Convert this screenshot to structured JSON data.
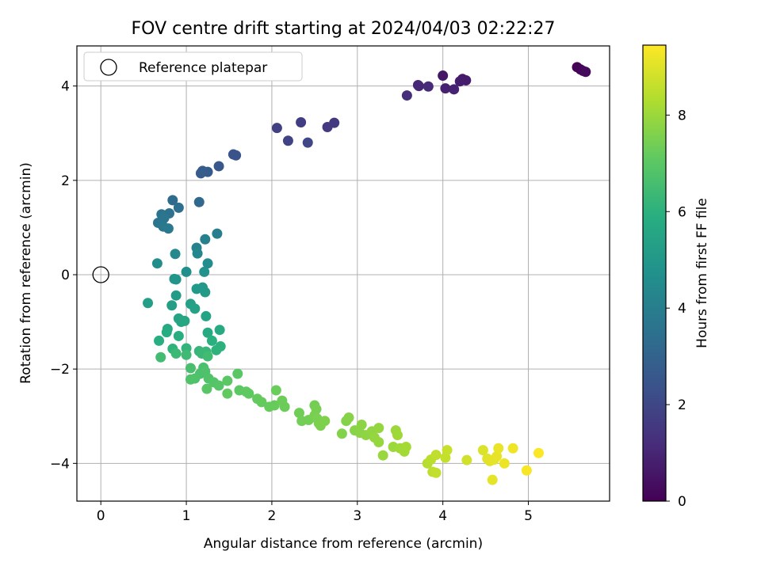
{
  "chart_data": {
    "type": "scatter",
    "title": "FOV centre drift starting at 2024/04/03 02:22:27",
    "xlabel": "Angular distance from reference (arcmin)",
    "ylabel": "Rotation from reference (arcmin)",
    "xlim": [
      -0.28,
      5.95
    ],
    "ylim": [
      -4.8,
      4.85
    ],
    "xticks": [
      0,
      1,
      2,
      3,
      4,
      5
    ],
    "yticks": [
      -4,
      -2,
      0,
      2,
      4
    ],
    "grid": true,
    "legend": {
      "placement": "top-left",
      "entries": [
        "Reference platepar"
      ]
    },
    "reference_point": {
      "name": "Reference platepar",
      "x": 0,
      "y": 0
    },
    "colorbar": {
      "label": "Hours from first FF file",
      "colormap": "viridis",
      "min": 0,
      "max": 9.45,
      "ticks": [
        0,
        2,
        4,
        6,
        8
      ]
    },
    "points": [
      {
        "x": 5.57,
        "y": 4.4,
        "t": 0.05
      },
      {
        "x": 5.61,
        "y": 4.35,
        "t": 0.12
      },
      {
        "x": 5.64,
        "y": 4.32,
        "t": 0.18
      },
      {
        "x": 5.67,
        "y": 4.3,
        "t": 0.25
      },
      {
        "x": 4.0,
        "y": 4.22,
        "t": 0.55
      },
      {
        "x": 4.23,
        "y": 4.15,
        "t": 0.65
      },
      {
        "x": 4.27,
        "y": 4.12,
        "t": 0.7
      },
      {
        "x": 4.2,
        "y": 4.1,
        "t": 0.75
      },
      {
        "x": 4.03,
        "y": 3.95,
        "t": 0.85
      },
      {
        "x": 4.13,
        "y": 3.93,
        "t": 0.9
      },
      {
        "x": 3.72,
        "y": 4.0,
        "t": 1.0
      },
      {
        "x": 3.71,
        "y": 4.02,
        "t": 1.05
      },
      {
        "x": 3.83,
        "y": 3.99,
        "t": 1.1
      },
      {
        "x": 3.58,
        "y": 3.8,
        "t": 1.2
      },
      {
        "x": 2.73,
        "y": 3.22,
        "t": 1.55
      },
      {
        "x": 2.65,
        "y": 3.13,
        "t": 1.6
      },
      {
        "x": 2.34,
        "y": 3.23,
        "t": 1.7
      },
      {
        "x": 2.06,
        "y": 3.11,
        "t": 1.8
      },
      {
        "x": 2.19,
        "y": 2.84,
        "t": 1.9
      },
      {
        "x": 2.42,
        "y": 2.8,
        "t": 2.0
      },
      {
        "x": 1.55,
        "y": 2.55,
        "t": 2.4
      },
      {
        "x": 1.58,
        "y": 2.53,
        "t": 2.45
      },
      {
        "x": 1.38,
        "y": 2.3,
        "t": 2.55
      },
      {
        "x": 1.25,
        "y": 2.18,
        "t": 2.65
      },
      {
        "x": 1.17,
        "y": 2.15,
        "t": 2.7
      },
      {
        "x": 1.19,
        "y": 2.2,
        "t": 2.75
      },
      {
        "x": 1.15,
        "y": 1.54,
        "t": 3.2
      },
      {
        "x": 0.84,
        "y": 1.58,
        "t": 3.3
      },
      {
        "x": 0.91,
        "y": 1.42,
        "t": 3.4
      },
      {
        "x": 0.8,
        "y": 1.3,
        "t": 3.5
      },
      {
        "x": 0.71,
        "y": 1.28,
        "t": 3.6
      },
      {
        "x": 0.74,
        "y": 1.2,
        "t": 3.65
      },
      {
        "x": 0.67,
        "y": 1.1,
        "t": 3.7
      },
      {
        "x": 0.73,
        "y": 1.02,
        "t": 3.75
      },
      {
        "x": 0.79,
        "y": 0.98,
        "t": 3.8
      },
      {
        "x": 1.36,
        "y": 0.87,
        "t": 4.0
      },
      {
        "x": 1.22,
        "y": 0.75,
        "t": 4.1
      },
      {
        "x": 1.12,
        "y": 0.57,
        "t": 4.2
      },
      {
        "x": 0.87,
        "y": 0.44,
        "t": 4.4
      },
      {
        "x": 1.13,
        "y": 0.45,
        "t": 4.35
      },
      {
        "x": 0.66,
        "y": 0.24,
        "t": 4.6
      },
      {
        "x": 1.25,
        "y": 0.24,
        "t": 4.55
      },
      {
        "x": 1.0,
        "y": 0.06,
        "t": 4.7
      },
      {
        "x": 1.21,
        "y": 0.06,
        "t": 4.75
      },
      {
        "x": 0.86,
        "y": -0.09,
        "t": 4.85
      },
      {
        "x": 0.88,
        "y": -0.1,
        "t": 4.9
      },
      {
        "x": 1.19,
        "y": -0.27,
        "t": 5.0
      },
      {
        "x": 1.12,
        "y": -0.3,
        "t": 5.05
      },
      {
        "x": 1.22,
        "y": -0.37,
        "t": 5.1
      },
      {
        "x": 0.88,
        "y": -0.44,
        "t": 5.15
      },
      {
        "x": 0.55,
        "y": -0.6,
        "t": 5.25
      },
      {
        "x": 0.83,
        "y": -0.65,
        "t": 5.3
      },
      {
        "x": 1.05,
        "y": -0.62,
        "t": 5.35
      },
      {
        "x": 1.1,
        "y": -0.72,
        "t": 5.4
      },
      {
        "x": 1.23,
        "y": -0.88,
        "t": 5.45
      },
      {
        "x": 0.91,
        "y": -0.93,
        "t": 5.5
      },
      {
        "x": 0.94,
        "y": -1.0,
        "t": 5.55
      },
      {
        "x": 0.98,
        "y": -0.98,
        "t": 5.6
      },
      {
        "x": 0.78,
        "y": -1.15,
        "t": 5.65
      },
      {
        "x": 1.39,
        "y": -1.17,
        "t": 5.7
      },
      {
        "x": 1.25,
        "y": -1.23,
        "t": 5.75
      },
      {
        "x": 0.77,
        "y": -1.22,
        "t": 5.8
      },
      {
        "x": 0.91,
        "y": -1.3,
        "t": 5.85
      },
      {
        "x": 0.68,
        "y": -1.4,
        "t": 5.9
      },
      {
        "x": 1.3,
        "y": -1.4,
        "t": 5.95
      },
      {
        "x": 1.4,
        "y": -1.52,
        "t": 6.0
      },
      {
        "x": 1.35,
        "y": -1.6,
        "t": 6.05
      },
      {
        "x": 0.84,
        "y": -1.57,
        "t": 6.1
      },
      {
        "x": 1.0,
        "y": -1.56,
        "t": 6.15
      },
      {
        "x": 1.15,
        "y": -1.62,
        "t": 6.2
      },
      {
        "x": 1.23,
        "y": -1.63,
        "t": 6.25
      },
      {
        "x": 1.18,
        "y": -1.67,
        "t": 6.3
      },
      {
        "x": 0.88,
        "y": -1.67,
        "t": 6.35
      },
      {
        "x": 1.0,
        "y": -1.7,
        "t": 6.4
      },
      {
        "x": 1.25,
        "y": -1.73,
        "t": 6.45
      },
      {
        "x": 0.7,
        "y": -1.75,
        "t": 6.5
      },
      {
        "x": 1.05,
        "y": -1.98,
        "t": 6.6
      },
      {
        "x": 1.2,
        "y": -1.97,
        "t": 6.65
      },
      {
        "x": 1.16,
        "y": -2.1,
        "t": 6.7
      },
      {
        "x": 1.22,
        "y": -2.05,
        "t": 6.72
      },
      {
        "x": 1.1,
        "y": -2.2,
        "t": 6.75
      },
      {
        "x": 1.05,
        "y": -2.22,
        "t": 6.78
      },
      {
        "x": 1.26,
        "y": -2.2,
        "t": 6.8
      },
      {
        "x": 1.32,
        "y": -2.28,
        "t": 6.85
      },
      {
        "x": 1.38,
        "y": -2.35,
        "t": 6.9
      },
      {
        "x": 1.24,
        "y": -2.42,
        "t": 6.95
      },
      {
        "x": 1.48,
        "y": -2.25,
        "t": 7.0
      },
      {
        "x": 1.6,
        "y": -2.1,
        "t": 7.02
      },
      {
        "x": 1.62,
        "y": -2.45,
        "t": 7.05
      },
      {
        "x": 1.7,
        "y": -2.48,
        "t": 7.08
      },
      {
        "x": 1.73,
        "y": -2.52,
        "t": 7.1
      },
      {
        "x": 1.48,
        "y": -2.52,
        "t": 7.12
      },
      {
        "x": 1.83,
        "y": -2.63,
        "t": 7.15
      },
      {
        "x": 1.88,
        "y": -2.7,
        "t": 7.18
      },
      {
        "x": 1.97,
        "y": -2.8,
        "t": 7.2
      },
      {
        "x": 2.03,
        "y": -2.77,
        "t": 7.22
      },
      {
        "x": 2.05,
        "y": -2.45,
        "t": 7.25
      },
      {
        "x": 2.12,
        "y": -2.67,
        "t": 7.28
      },
      {
        "x": 2.15,
        "y": -2.8,
        "t": 7.3
      },
      {
        "x": 2.32,
        "y": -2.93,
        "t": 7.35
      },
      {
        "x": 2.35,
        "y": -3.1,
        "t": 7.38
      },
      {
        "x": 2.43,
        "y": -3.08,
        "t": 7.4
      },
      {
        "x": 2.5,
        "y": -2.77,
        "t": 7.42
      },
      {
        "x": 2.52,
        "y": -2.85,
        "t": 7.45
      },
      {
        "x": 2.5,
        "y": -2.98,
        "t": 7.48
      },
      {
        "x": 2.53,
        "y": -3.05,
        "t": 7.5
      },
      {
        "x": 2.55,
        "y": -3.15,
        "t": 7.52
      },
      {
        "x": 2.57,
        "y": -3.2,
        "t": 7.55
      },
      {
        "x": 2.62,
        "y": -3.1,
        "t": 7.58
      },
      {
        "x": 2.82,
        "y": -3.37,
        "t": 7.62
      },
      {
        "x": 2.87,
        "y": -3.1,
        "t": 7.65
      },
      {
        "x": 2.9,
        "y": -3.03,
        "t": 7.68
      },
      {
        "x": 2.97,
        "y": -3.3,
        "t": 7.72
      },
      {
        "x": 3.03,
        "y": -3.35,
        "t": 7.75
      },
      {
        "x": 3.05,
        "y": -3.18,
        "t": 7.78
      },
      {
        "x": 3.1,
        "y": -3.4,
        "t": 7.82
      },
      {
        "x": 3.17,
        "y": -3.32,
        "t": 7.85
      },
      {
        "x": 3.2,
        "y": -3.45,
        "t": 7.88
      },
      {
        "x": 3.25,
        "y": -3.25,
        "t": 7.9
      },
      {
        "x": 3.25,
        "y": -3.55,
        "t": 7.92
      },
      {
        "x": 3.3,
        "y": -3.83,
        "t": 7.95
      },
      {
        "x": 3.42,
        "y": -3.65,
        "t": 8.0
      },
      {
        "x": 3.45,
        "y": -3.3,
        "t": 8.02
      },
      {
        "x": 3.47,
        "y": -3.4,
        "t": 8.05
      },
      {
        "x": 3.5,
        "y": -3.68,
        "t": 8.08
      },
      {
        "x": 3.55,
        "y": -3.75,
        "t": 8.12
      },
      {
        "x": 3.57,
        "y": -3.65,
        "t": 8.15
      },
      {
        "x": 3.82,
        "y": -4.0,
        "t": 8.4
      },
      {
        "x": 3.86,
        "y": -3.92,
        "t": 8.45
      },
      {
        "x": 3.88,
        "y": -4.18,
        "t": 8.5
      },
      {
        "x": 3.92,
        "y": -3.82,
        "t": 8.55
      },
      {
        "x": 3.92,
        "y": -4.2,
        "t": 8.58
      },
      {
        "x": 4.03,
        "y": -3.88,
        "t": 8.62
      },
      {
        "x": 4.05,
        "y": -3.72,
        "t": 8.65
      },
      {
        "x": 4.28,
        "y": -3.93,
        "t": 8.8
      },
      {
        "x": 4.47,
        "y": -3.72,
        "t": 8.95
      },
      {
        "x": 4.52,
        "y": -3.9,
        "t": 9.0
      },
      {
        "x": 4.55,
        "y": -3.95,
        "t": 9.05
      },
      {
        "x": 4.58,
        "y": -4.35,
        "t": 9.08
      },
      {
        "x": 4.6,
        "y": -3.92,
        "t": 9.1
      },
      {
        "x": 4.63,
        "y": -3.85,
        "t": 9.12
      },
      {
        "x": 4.65,
        "y": -3.68,
        "t": 9.15
      },
      {
        "x": 4.72,
        "y": -4.0,
        "t": 9.2
      },
      {
        "x": 4.82,
        "y": -3.68,
        "t": 9.25
      },
      {
        "x": 4.98,
        "y": -4.15,
        "t": 9.35
      },
      {
        "x": 5.12,
        "y": -3.78,
        "t": 9.4
      }
    ]
  }
}
